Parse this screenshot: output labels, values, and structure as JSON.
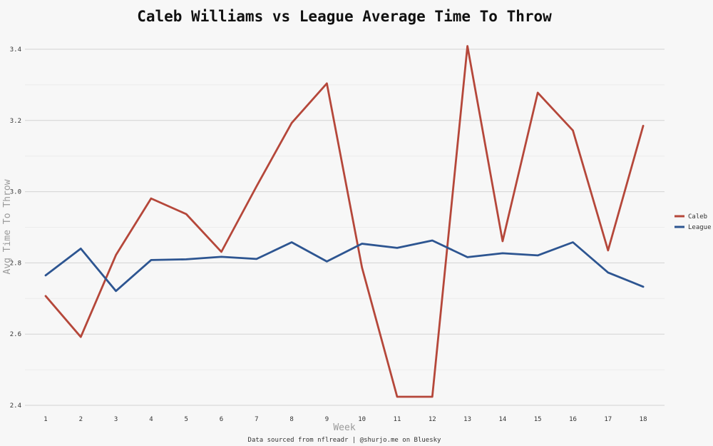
{
  "chart_data": {
    "type": "line",
    "title": "Caleb Williams vs League Average Time To Throw",
    "xlabel": "Week",
    "ylabel": "Avg Time To Throw",
    "caption": "Data sourced from nflreadr | @shurjo.me on Bluesky",
    "x": [
      1,
      2,
      3,
      4,
      5,
      6,
      7,
      8,
      9,
      10,
      11,
      12,
      13,
      14,
      15,
      16,
      17,
      18
    ],
    "ylim": [
      2.4,
      3.4
    ],
    "y_ticks": [
      "2.4",
      "2.6",
      "2.8",
      "3.0",
      "3.2",
      "3.4"
    ],
    "grid": true,
    "legend_position": "right",
    "series": [
      {
        "name": "Caleb",
        "color": "#b5473a",
        "values": [
          2.707,
          2.592,
          2.822,
          2.981,
          2.937,
          2.831,
          3.015,
          3.193,
          3.304,
          2.787,
          2.424,
          2.424,
          3.409,
          2.861,
          3.278,
          3.172,
          2.835,
          3.185
        ]
      },
      {
        "name": "League",
        "color": "#2d5591",
        "values": [
          2.765,
          2.84,
          2.721,
          2.808,
          2.81,
          2.817,
          2.811,
          2.858,
          2.804,
          2.854,
          2.842,
          2.863,
          2.816,
          2.827,
          2.821,
          2.858,
          2.773,
          2.733
        ]
      }
    ]
  }
}
